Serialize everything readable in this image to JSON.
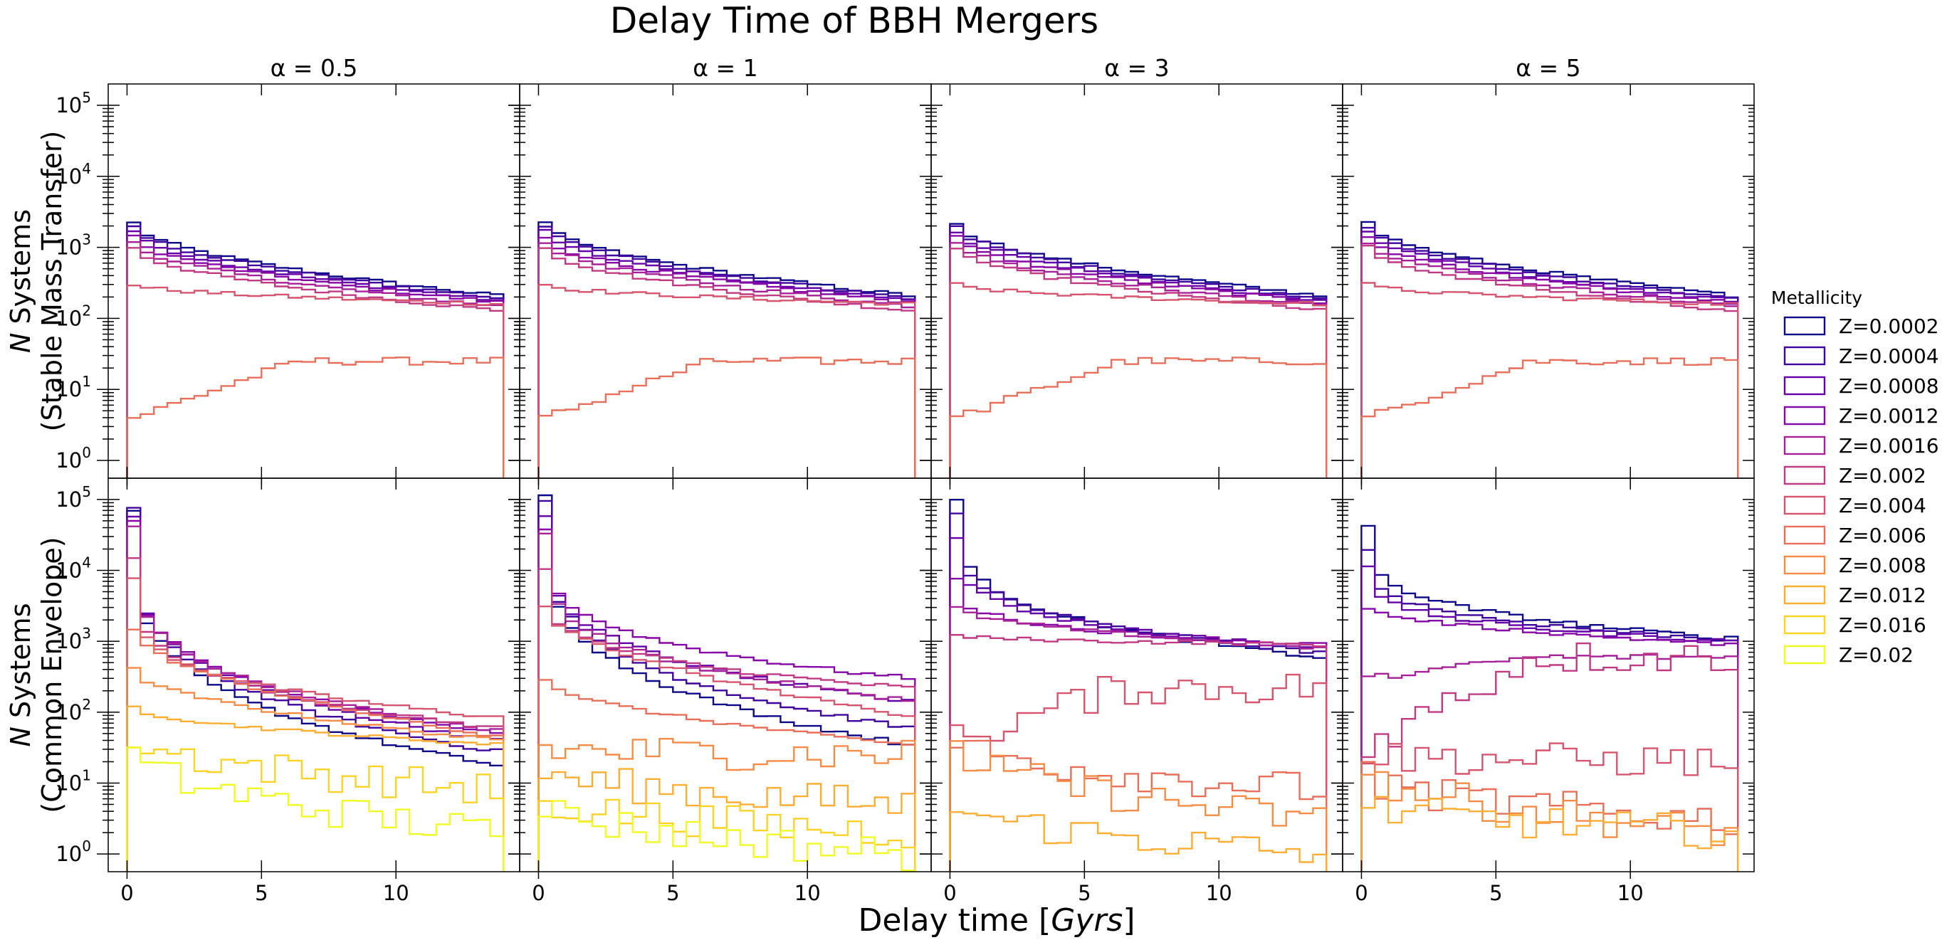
{
  "chart_data": {
    "type": "histogram",
    "title": "Delay Time of BBH Mergers",
    "xlabel": "Delay time [Gyrs]",
    "xlabel_parts": {
      "main": "Delay time [",
      "italic": "Gyrs",
      "close": "]"
    },
    "column_titles": [
      "α = 0.5",
      "α = 1",
      "α = 3",
      "α = 5"
    ],
    "row_labels": [
      {
        "line1_italic": "N",
        "line1_rest": " Systems",
        "line2": "(Stable Mass Transfer)"
      },
      {
        "line1_italic": "N",
        "line1_rest": " Systems",
        "line2": "(Common Envelope)"
      }
    ],
    "xlim": [
      -0.7,
      14.6
    ],
    "x_ticks": [
      0,
      5,
      10
    ],
    "x_tick_labels": [
      "0",
      "5",
      "10"
    ],
    "y_scale": "log",
    "ylim_log10": [
      -0.25,
      5.3
    ],
    "y_ticks_labeled": [
      "10^0",
      "10^1",
      "10^2",
      "10^3",
      "10^4",
      "10^5"
    ],
    "bin_edges_gyr": [
      0,
      0.5,
      1,
      1.5,
      2,
      2.5,
      3,
      3.5,
      4,
      4.5,
      5,
      5.5,
      6,
      6.5,
      7,
      7.5,
      8,
      8.5,
      9,
      9.5,
      10,
      10.5,
      11,
      11.5,
      12,
      12.5,
      13,
      13.5,
      14
    ],
    "legend": {
      "title": "Metallicity",
      "placement": "right",
      "entries": [
        "Z=0.0002",
        "Z=0.0004",
        "Z=0.0008",
        "Z=0.0012",
        "Z=0.0016",
        "Z=0.002",
        "Z=0.004",
        "Z=0.006",
        "Z=0.008",
        "Z=0.012",
        "Z=0.016",
        "Z=0.02"
      ]
    },
    "series_colors": [
      "#0d0887",
      "#3e049c",
      "#6300a7",
      "#8606a6",
      "#a62098",
      "#c03a83",
      "#d5546e",
      "#e76f5a",
      "#f58c46",
      "#fdad32",
      "#fcd225",
      "#f0f921"
    ],
    "panels": [
      {
        "row": "Stable Mass Transfer",
        "alpha": 0.5,
        "series_start_counts": [
          2200,
          2000,
          1700,
          1400,
          1200,
          1000,
          300,
          4
        ],
        "series_end_counts": [
          210,
          195,
          180,
          170,
          150,
          130,
          160,
          25
        ]
      },
      {
        "row": "Stable Mass Transfer",
        "alpha": 1,
        "series_start_counts": [
          2200,
          2000,
          1700,
          1400,
          1200,
          1000,
          300,
          4
        ],
        "series_end_counts": [
          210,
          195,
          180,
          170,
          150,
          130,
          160,
          25
        ]
      },
      {
        "row": "Stable Mass Transfer",
        "alpha": 3,
        "series_start_counts": [
          2200,
          2000,
          1700,
          1400,
          1200,
          1000,
          300,
          4
        ],
        "series_end_counts": [
          210,
          195,
          180,
          170,
          150,
          130,
          160,
          25
        ]
      },
      {
        "row": "Stable Mass Transfer",
        "alpha": 5,
        "series_start_counts": [
          2200,
          2000,
          1700,
          1400,
          1200,
          1000,
          300,
          4
        ],
        "series_end_counts": [
          210,
          195,
          180,
          170,
          150,
          130,
          160,
          25
        ]
      },
      {
        "row": "Common Envelope",
        "alpha": 0.5,
        "series_start_counts": [
          70000,
          75000,
          60000,
          50000,
          40000,
          15000,
          8000,
          1500,
          400,
          120,
          45,
          25
        ],
        "series_end_counts": [
          18,
          28,
          40,
          50,
          55,
          60,
          85,
          45,
          40,
          35,
          8,
          2
        ]
      },
      {
        "row": "Common Envelope",
        "alpha": 1,
        "series_start_counts": [
          110000,
          100000,
          60000,
          40000,
          35000,
          10000,
          3000,
          300,
          30,
          15,
          6,
          5
        ],
        "series_end_counts": [
          35,
          60,
          140,
          300,
          150,
          220,
          90,
          35,
          25,
          5,
          2,
          1
        ]
      },
      {
        "row": "Common Envelope",
        "alpha": 3,
        "series_start_counts": [
          100000,
          60000,
          30000,
          8000,
          3000,
          1200,
          40,
          40,
          30,
          5
        ],
        "series_end_counts": [
          600,
          700,
          800,
          900,
          800,
          900,
          220,
          8,
          3,
          1
        ]
      },
      {
        "row": "Common Envelope",
        "alpha": 5,
        "series_start_counts": [
          40000,
          20000,
          12000,
          3000,
          300,
          35,
          25,
          12,
          15,
          5
        ],
        "series_end_counts": [
          1100,
          1050,
          1000,
          900,
          600,
          600,
          20,
          3,
          2,
          2
        ]
      }
    ]
  }
}
